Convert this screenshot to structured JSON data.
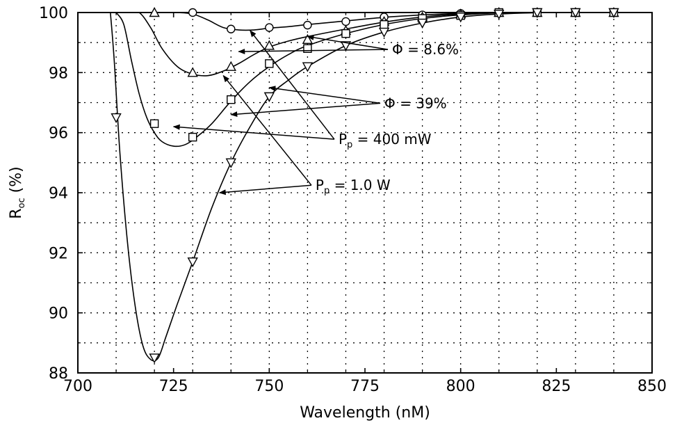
{
  "chart_data": {
    "type": "line",
    "xlabel": "Wavelength (nM)",
    "ylabel": "R",
    "ylabel_sub": "oc",
    "ylabel_unit": " (%)",
    "xlim": [
      700,
      850
    ],
    "ylim": [
      88,
      100
    ],
    "x_ticks": [
      700,
      725,
      750,
      775,
      800,
      825,
      850
    ],
    "y_ticks": [
      88,
      90,
      92,
      94,
      96,
      98,
      100
    ],
    "x_minor_grid": [
      710,
      720,
      730,
      740,
      750,
      760,
      770,
      780,
      790,
      800,
      810,
      820,
      830,
      840
    ],
    "y_minor_grid": [
      89,
      90,
      91,
      92,
      93,
      94,
      95,
      96,
      97,
      98,
      99
    ],
    "grid": true,
    "series": [
      {
        "marker": "circle",
        "points": [
          [
            730,
            100.0
          ],
          [
            740,
            99.45
          ],
          [
            750,
            99.5
          ],
          [
            760,
            99.58
          ],
          [
            770,
            99.7
          ],
          [
            780,
            99.85
          ],
          [
            790,
            99.92
          ],
          [
            800,
            99.97
          ],
          [
            810,
            100.0
          ],
          [
            820,
            100.0
          ],
          [
            830,
            100.0
          ],
          [
            840,
            100.0
          ]
        ],
        "curve": [
          [
            722,
            100.0
          ],
          [
            726,
            100.0
          ],
          [
            730,
            99.95
          ],
          [
            734,
            99.75
          ],
          [
            738,
            99.5
          ],
          [
            742,
            99.42
          ],
          [
            746,
            99.42
          ],
          [
            750,
            99.48
          ],
          [
            755,
            99.53
          ],
          [
            760,
            99.6
          ],
          [
            770,
            99.72
          ],
          [
            780,
            99.84
          ],
          [
            790,
            99.92
          ],
          [
            800,
            99.97
          ],
          [
            815,
            100.0
          ],
          [
            850,
            100.0
          ]
        ]
      },
      {
        "marker": "triangle",
        "points": [
          [
            720,
            100.0
          ],
          [
            730,
            98.0
          ],
          [
            740,
            98.2
          ],
          [
            750,
            98.9
          ],
          [
            760,
            99.1
          ],
          [
            770,
            99.4
          ],
          [
            780,
            99.7
          ],
          [
            790,
            99.85
          ],
          [
            800,
            99.95
          ],
          [
            810,
            100.0
          ],
          [
            820,
            100.0
          ],
          [
            830,
            100.0
          ],
          [
            840,
            100.0
          ]
        ],
        "curve": [
          [
            713,
            100.0
          ],
          [
            716,
            100.0
          ],
          [
            719,
            99.5
          ],
          [
            722,
            98.8
          ],
          [
            726,
            98.2
          ],
          [
            730,
            97.95
          ],
          [
            734,
            97.9
          ],
          [
            738,
            98.05
          ],
          [
            742,
            98.3
          ],
          [
            746,
            98.6
          ],
          [
            750,
            98.85
          ],
          [
            755,
            99.05
          ],
          [
            760,
            99.2
          ],
          [
            770,
            99.45
          ],
          [
            780,
            99.68
          ],
          [
            790,
            99.85
          ],
          [
            800,
            99.95
          ],
          [
            815,
            100.0
          ],
          [
            850,
            100.0
          ]
        ]
      },
      {
        "marker": "square",
        "points": [
          [
            720,
            96.3
          ],
          [
            730,
            95.85
          ],
          [
            740,
            97.1
          ],
          [
            750,
            98.3
          ],
          [
            760,
            98.8
          ],
          [
            770,
            99.3
          ],
          [
            780,
            99.6
          ],
          [
            790,
            99.8
          ],
          [
            800,
            99.9
          ],
          [
            810,
            100.0
          ],
          [
            820,
            100.0
          ],
          [
            830,
            100.0
          ],
          [
            840,
            100.0
          ]
        ],
        "curve": [
          [
            710,
            100.0
          ],
          [
            712,
            99.6
          ],
          [
            714,
            98.4
          ],
          [
            716,
            97.3
          ],
          [
            718,
            96.5
          ],
          [
            720,
            96.0
          ],
          [
            722,
            95.7
          ],
          [
            725,
            95.55
          ],
          [
            728,
            95.6
          ],
          [
            731,
            95.85
          ],
          [
            735,
            96.3
          ],
          [
            740,
            97.05
          ],
          [
            745,
            97.7
          ],
          [
            750,
            98.2
          ],
          [
            755,
            98.6
          ],
          [
            760,
            98.9
          ],
          [
            770,
            99.3
          ],
          [
            780,
            99.6
          ],
          [
            790,
            99.8
          ],
          [
            800,
            99.92
          ],
          [
            815,
            100.0
          ],
          [
            850,
            100.0
          ]
        ]
      },
      {
        "marker": "down-triangle",
        "points": [
          [
            710,
            96.5
          ],
          [
            720,
            88.5
          ],
          [
            730,
            91.7
          ],
          [
            740,
            95.0
          ],
          [
            750,
            97.2
          ],
          [
            760,
            98.2
          ],
          [
            770,
            98.9
          ],
          [
            780,
            99.35
          ],
          [
            790,
            99.65
          ],
          [
            800,
            99.85
          ],
          [
            810,
            99.95
          ],
          [
            820,
            100.0
          ],
          [
            830,
            100.0
          ],
          [
            840,
            100.0
          ]
        ],
        "curve": [
          [
            708.5,
            100.0
          ],
          [
            709.5,
            98.4
          ],
          [
            711,
            95.3
          ],
          [
            713,
            92.3
          ],
          [
            715,
            90.2
          ],
          [
            717,
            88.9
          ],
          [
            719,
            88.45
          ],
          [
            721,
            88.5
          ],
          [
            723,
            89.2
          ],
          [
            726,
            90.3
          ],
          [
            730,
            91.7
          ],
          [
            735,
            93.5
          ],
          [
            740,
            95.0
          ],
          [
            745,
            96.2
          ],
          [
            750,
            97.2
          ],
          [
            755,
            97.75
          ],
          [
            760,
            98.2
          ],
          [
            770,
            98.9
          ],
          [
            780,
            99.35
          ],
          [
            790,
            99.65
          ],
          [
            800,
            99.85
          ],
          [
            810,
            99.95
          ],
          [
            825,
            100.0
          ],
          [
            850,
            100.0
          ]
        ]
      }
    ],
    "annotations": [
      {
        "main": "Φ = 8.6%",
        "sub": "",
        "anchor": [
          781,
          98.77
        ],
        "targets": [
          [
            760,
            99.2
          ],
          [
            742,
            98.7
          ]
        ]
      },
      {
        "main": "Φ = 39%",
        "sub": "",
        "anchor": [
          779,
          96.98
        ],
        "targets": [
          [
            750,
            97.5
          ],
          [
            740,
            96.6
          ]
        ]
      },
      {
        "main": "P",
        "sub": "p",
        "tail": " = 400 mW",
        "anchor": [
          767,
          95.78
        ],
        "targets": [
          [
            745,
            99.4
          ],
          [
            725,
            96.2
          ]
        ]
      },
      {
        "main": "P",
        "sub": "p",
        "tail": " = 1.0 W",
        "anchor": [
          761,
          94.25
        ],
        "targets": [
          [
            738,
            97.9
          ],
          [
            737,
            94.0
          ]
        ]
      }
    ]
  }
}
